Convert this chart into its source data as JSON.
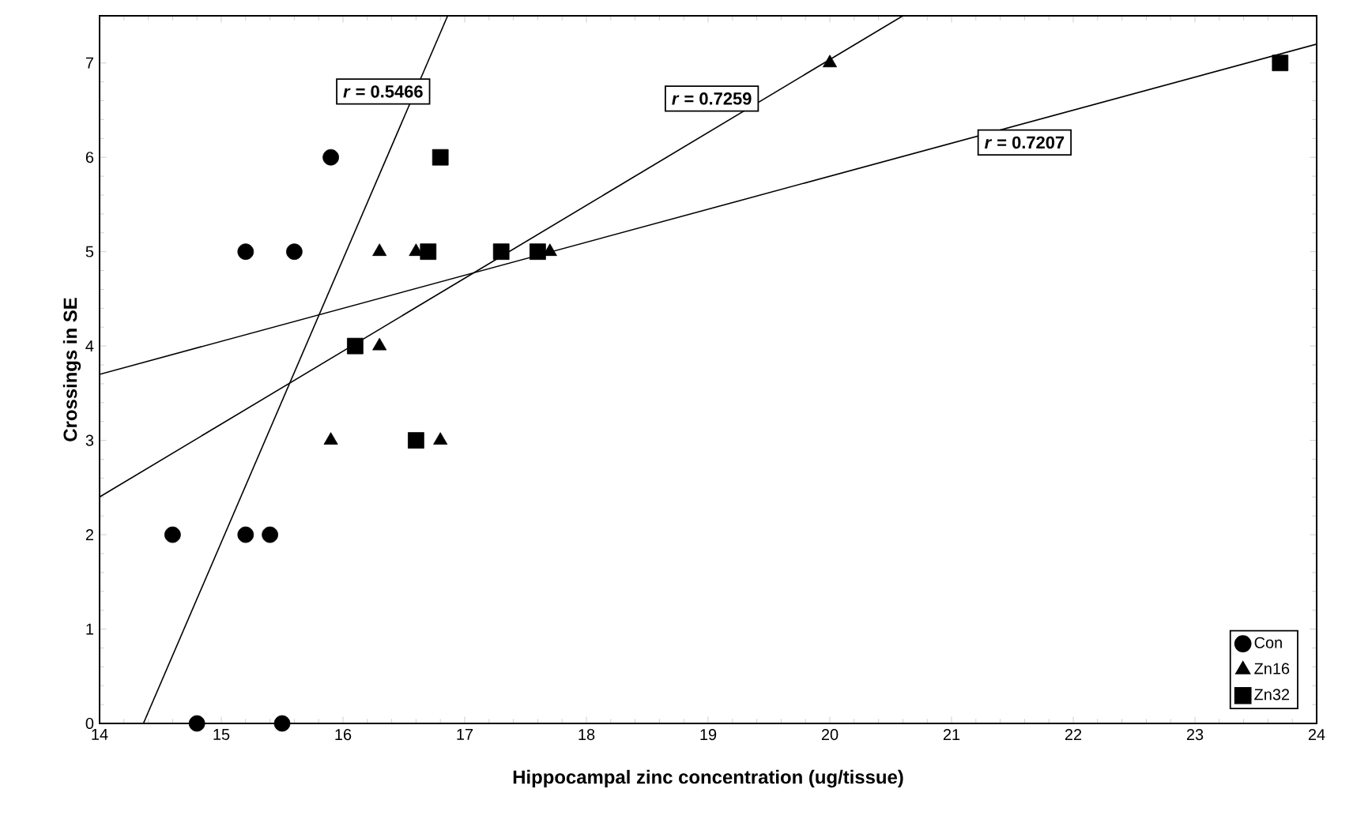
{
  "chart_data": {
    "type": "scatter",
    "xlabel": "Hippocampal zinc concentration  (ug/tissue)",
    "ylabel": "Crossings in SE",
    "xlim": [
      14,
      24
    ],
    "ylim": [
      0,
      7.5
    ],
    "xticks": [
      14,
      15,
      16,
      17,
      18,
      19,
      20,
      21,
      22,
      23,
      24
    ],
    "yticks": [
      0,
      1,
      2,
      3,
      4,
      5,
      6,
      7
    ],
    "grid": false,
    "legend": "bottom right",
    "series": [
      {
        "name": "Con",
        "marker": "circle",
        "color": "#000000",
        "x": [
          15.9,
          15.2,
          15.6,
          14.6,
          15.2,
          15.4,
          14.8,
          15.5
        ],
        "values": [
          6,
          5,
          5,
          2,
          2,
          2,
          0,
          0
        ]
      },
      {
        "name": "Zn16",
        "marker": "triangle",
        "color": "#000000",
        "x": [
          16.3,
          16.6,
          17.7,
          16.3,
          15.9,
          16.8,
          20.0
        ],
        "values": [
          5,
          5,
          5,
          4,
          3,
          3,
          7
        ]
      },
      {
        "name": "Zn32",
        "marker": "square",
        "color": "#000000",
        "x": [
          16.8,
          16.7,
          17.3,
          17.6,
          16.1,
          16.6,
          23.7
        ],
        "values": [
          6,
          5,
          5,
          5,
          4,
          3,
          7
        ]
      },
      {
        "type": "line",
        "marker": "none",
        "color": "#000000",
        "x": [
          14.36,
          16.86
        ],
        "values": [
          0,
          7.5
        ]
      },
      {
        "type": "line",
        "marker": "none",
        "color": "#000000",
        "x": [
          14,
          20.6
        ],
        "values": [
          2.4,
          7.5
        ]
      },
      {
        "type": "line",
        "marker": "none",
        "color": "#000000",
        "x": [
          14,
          24
        ],
        "values": [
          3.7,
          7.2
        ]
      }
    ],
    "annotations": [
      "*r* = 0.5466",
      "*r* = 0.7259",
      "*r* = 0.7207"
    ]
  }
}
